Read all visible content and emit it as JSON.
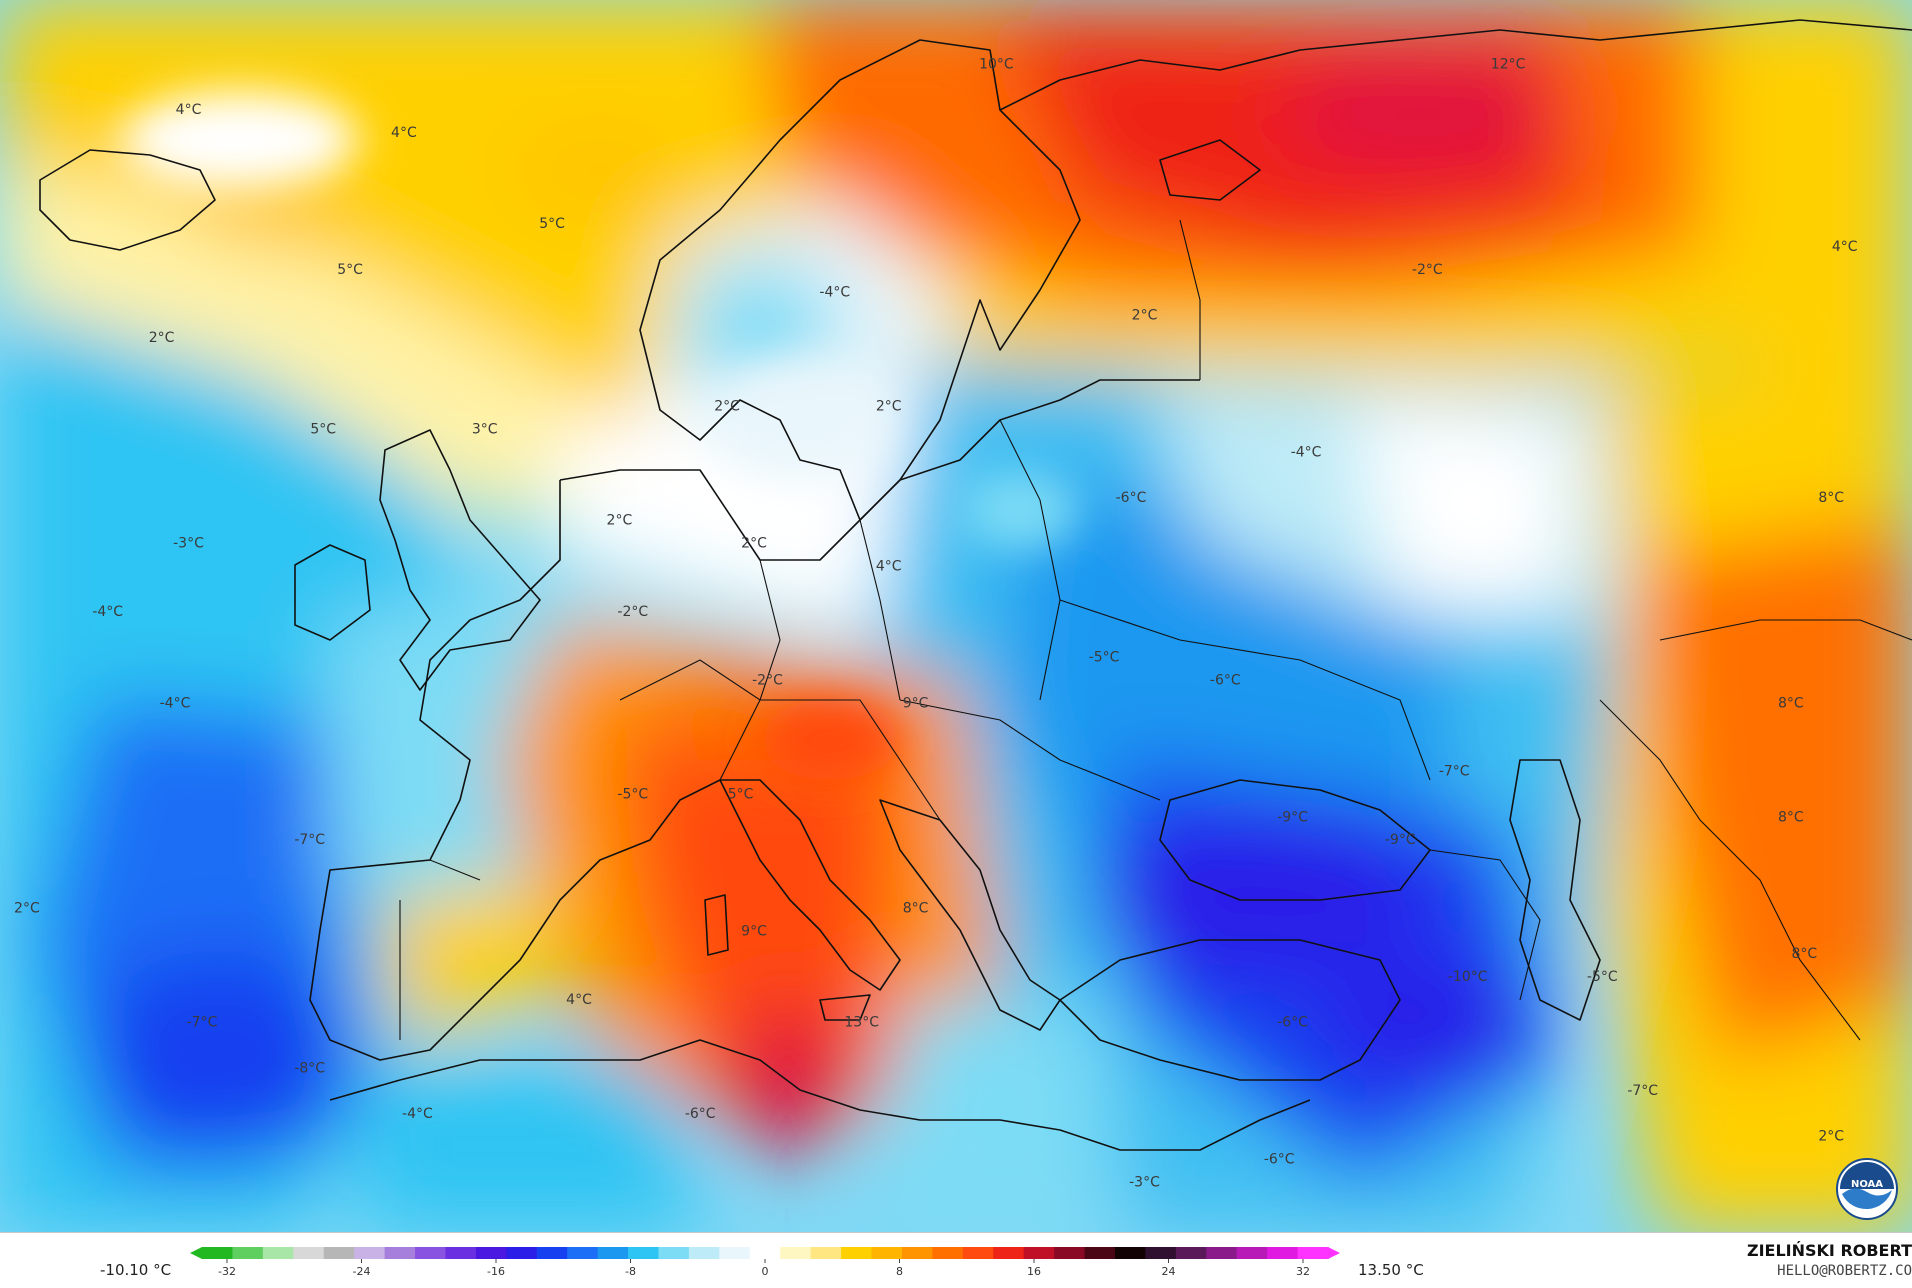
{
  "map": {
    "labels": [
      {
        "text": "4°C",
        "lon": -38,
        "lat": 69
      },
      {
        "text": "4°C",
        "lon": -22,
        "lat": 68
      },
      {
        "text": "5°C",
        "lon": -11,
        "lat": 64
      },
      {
        "text": "5°C",
        "lon": -26,
        "lat": 62
      },
      {
        "text": "2°C",
        "lon": -40,
        "lat": 59
      },
      {
        "text": "5°C",
        "lon": -28,
        "lat": 55
      },
      {
        "text": "3°C",
        "lon": -16,
        "lat": 55
      },
      {
        "text": "-3°C",
        "lon": -38,
        "lat": 50
      },
      {
        "text": "-4°C",
        "lon": -44,
        "lat": 47
      },
      {
        "text": "-4°C",
        "lon": -39,
        "lat": 43
      },
      {
        "text": "-7°C",
        "lon": -29,
        "lat": 37
      },
      {
        "text": "2°C",
        "lon": -50,
        "lat": 34
      },
      {
        "text": "-7°C",
        "lon": -37,
        "lat": 29
      },
      {
        "text": "-8°C",
        "lon": -29,
        "lat": 27
      },
      {
        "text": "-4°C",
        "lon": -21,
        "lat": 25
      },
      {
        "text": "10°C",
        "lon": 22,
        "lat": 71
      },
      {
        "text": "12°C",
        "lon": 60,
        "lat": 71
      },
      {
        "text": "-4°C",
        "lon": 10,
        "lat": 61
      },
      {
        "text": "2°C",
        "lon": 33,
        "lat": 60
      },
      {
        "text": "2°C",
        "lon": 2,
        "lat": 56
      },
      {
        "text": "2°C",
        "lon": 14,
        "lat": 56
      },
      {
        "text": "2°C",
        "lon": -6,
        "lat": 51
      },
      {
        "text": "2°C",
        "lon": 4,
        "lat": 50
      },
      {
        "text": "4°C",
        "lon": 14,
        "lat": 49
      },
      {
        "text": "-2°C",
        "lon": -5,
        "lat": 47
      },
      {
        "text": "-2°C",
        "lon": 5,
        "lat": 44
      },
      {
        "text": "9°C",
        "lon": 16,
        "lat": 43
      },
      {
        "text": "5°C",
        "lon": 3,
        "lat": 39
      },
      {
        "text": "-5°C",
        "lon": -5,
        "lat": 39
      },
      {
        "text": "9°C",
        "lon": 4,
        "lat": 33
      },
      {
        "text": "8°C",
        "lon": 16,
        "lat": 34
      },
      {
        "text": "4°C",
        "lon": -9,
        "lat": 30
      },
      {
        "text": "13°C",
        "lon": 12,
        "lat": 29
      },
      {
        "text": "-6°C",
        "lon": 0,
        "lat": 25
      },
      {
        "text": "-2°C",
        "lon": 54,
        "lat": 62
      },
      {
        "text": "4°C",
        "lon": 85,
        "lat": 63
      },
      {
        "text": "-4°C",
        "lon": 45,
        "lat": 54
      },
      {
        "text": "-6°C",
        "lon": 32,
        "lat": 52
      },
      {
        "text": "8°C",
        "lon": 84,
        "lat": 52
      },
      {
        "text": "-5°C",
        "lon": 30,
        "lat": 45
      },
      {
        "text": "-6°C",
        "lon": 39,
        "lat": 44
      },
      {
        "text": "8°C",
        "lon": 81,
        "lat": 43
      },
      {
        "text": "-7°C",
        "lon": 56,
        "lat": 40
      },
      {
        "text": "-9°C",
        "lon": 44,
        "lat": 38
      },
      {
        "text": "-9°C",
        "lon": 52,
        "lat": 37
      },
      {
        "text": "8°C",
        "lon": 81,
        "lat": 38
      },
      {
        "text": "-5°C",
        "lon": 67,
        "lat": 31
      },
      {
        "text": "-10°C",
        "lon": 57,
        "lat": 31
      },
      {
        "text": "8°C",
        "lon": 82,
        "lat": 32
      },
      {
        "text": "-6°C",
        "lon": 44,
        "lat": 29
      },
      {
        "text": "-7°C",
        "lon": 70,
        "lat": 26
      },
      {
        "text": "-6°C",
        "lon": 43,
        "lat": 23
      },
      {
        "text": "-3°C",
        "lon": 33,
        "lat": 22
      },
      {
        "text": "2°C",
        "lon": 84,
        "lat": 24
      }
    ]
  },
  "legend": {
    "min_label": "-10.10 °C",
    "max_label": "13.50 °C",
    "ticks": [
      "-32",
      "-24",
      "-16",
      "-8",
      "0",
      "8",
      "16",
      "24",
      "32"
    ],
    "colors": [
      "#22b822",
      "#5fd05f",
      "#a8e6a8",
      "#d8d8d8",
      "#b6b6b6",
      "#c9b3e6",
      "#a67fdd",
      "#8a52e0",
      "#6a2fe0",
      "#4a18e0",
      "#2a1ee8",
      "#1640f0",
      "#1b6ef5",
      "#1d98f0",
      "#2ec4f3",
      "#7ddcf5",
      "#bdebf7",
      "#e9f6fb",
      "#ffffff",
      "#fff7c2",
      "#ffe680",
      "#ffd000",
      "#ffb400",
      "#ff9400",
      "#ff7000",
      "#ff4a10",
      "#ef2418",
      "#c01028",
      "#8a0a26",
      "#4a0614",
      "#120204",
      "#301030",
      "#5a1a5a",
      "#8a1a8a",
      "#b81ab8",
      "#e01ae0",
      "#ff33ff"
    ]
  },
  "brand": {
    "name": "ZIELIŃSKI ROBERT",
    "email": "HELLO@ROBERTZ.CO"
  },
  "logo": {
    "text": "NOAA"
  }
}
